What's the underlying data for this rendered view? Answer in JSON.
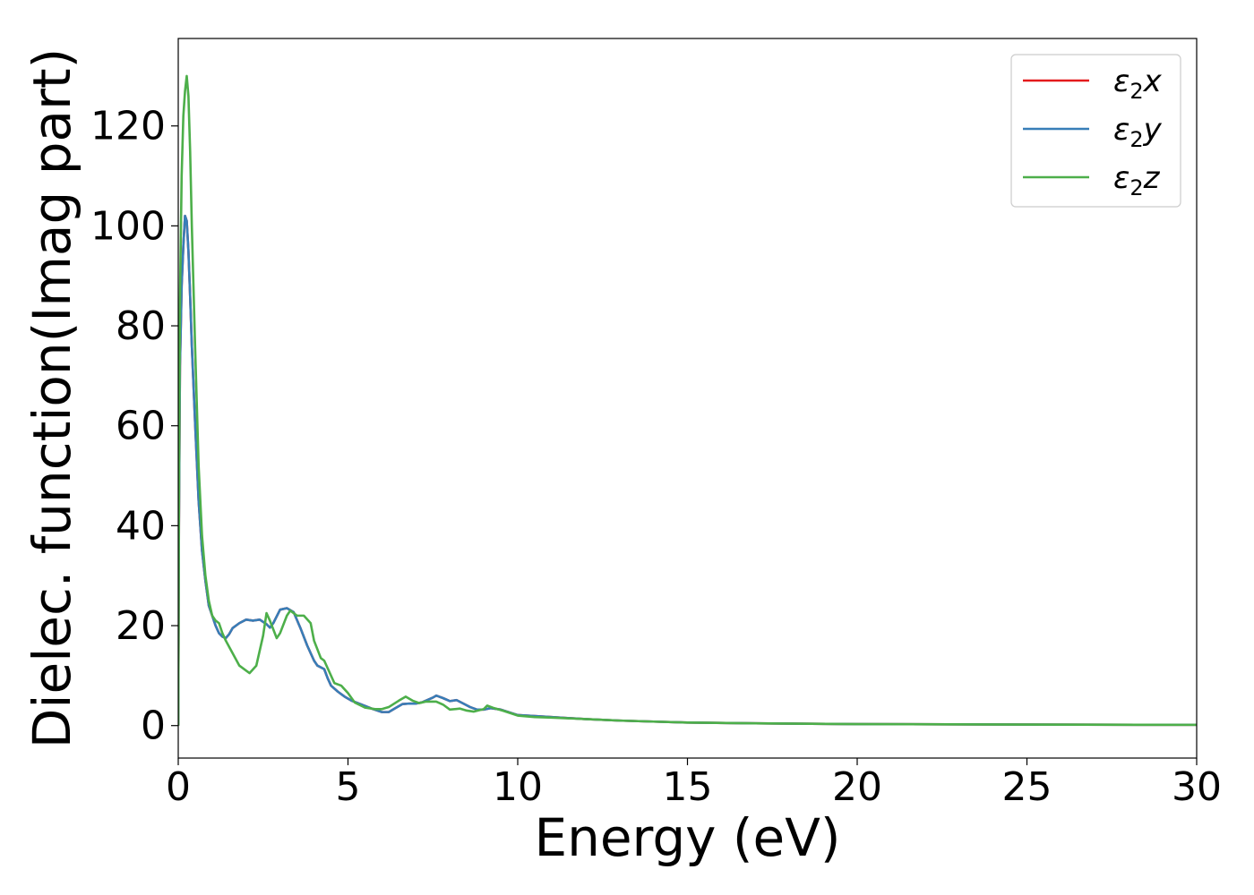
{
  "chart_data": {
    "type": "line",
    "xlabel": "Energy (eV)",
    "ylabel": "Dielec. function(Imag part)",
    "xlim": [
      0,
      30
    ],
    "ylim": [
      -6.5,
      137.5
    ],
    "xticks": [
      0,
      5,
      10,
      15,
      20,
      25,
      30
    ],
    "yticks": [
      0,
      20,
      40,
      60,
      80,
      100,
      120
    ],
    "grid": false,
    "legend_position": "top-right",
    "series": [
      {
        "name": "ε2x",
        "legend": {
          "base": "ε",
          "sub": "2",
          "suffix": "x"
        },
        "color": "#e41a1c",
        "points": [
          [
            0,
            0
          ],
          [
            0.02,
            40
          ],
          [
            0.05,
            72
          ],
          [
            0.1,
            88
          ],
          [
            0.15,
            96
          ],
          [
            0.2,
            102
          ],
          [
            0.25,
            101
          ],
          [
            0.3,
            95
          ],
          [
            0.35,
            86
          ],
          [
            0.4,
            76
          ],
          [
            0.5,
            60
          ],
          [
            0.6,
            45
          ],
          [
            0.7,
            35
          ],
          [
            0.8,
            29
          ],
          [
            0.9,
            24
          ],
          [
            1.0,
            22
          ],
          [
            1.1,
            20
          ],
          [
            1.2,
            18.5
          ],
          [
            1.3,
            17.8
          ],
          [
            1.4,
            17.5
          ],
          [
            1.5,
            18.3
          ],
          [
            1.6,
            19.5
          ],
          [
            1.8,
            20.5
          ],
          [
            2.0,
            21.2
          ],
          [
            2.2,
            21
          ],
          [
            2.4,
            21.2
          ],
          [
            2.6,
            20.3
          ],
          [
            2.7,
            19.6
          ],
          [
            2.8,
            20.5
          ],
          [
            3.0,
            23.2
          ],
          [
            3.2,
            23.5
          ],
          [
            3.4,
            22.7
          ],
          [
            3.6,
            19.5
          ],
          [
            3.8,
            16
          ],
          [
            4.0,
            13
          ],
          [
            4.1,
            12
          ],
          [
            4.3,
            11.3
          ],
          [
            4.4,
            9.5
          ],
          [
            4.5,
            8
          ],
          [
            4.7,
            6.8
          ],
          [
            4.9,
            5.8
          ],
          [
            5.1,
            5
          ],
          [
            5.4,
            4.2
          ],
          [
            5.7,
            3.4
          ],
          [
            6.0,
            2.7
          ],
          [
            6.2,
            2.7
          ],
          [
            6.4,
            3.5
          ],
          [
            6.6,
            4.3
          ],
          [
            6.8,
            4.4
          ],
          [
            7.0,
            4.4
          ],
          [
            7.2,
            4.7
          ],
          [
            7.5,
            5.6
          ],
          [
            7.6,
            6
          ],
          [
            7.8,
            5.5
          ],
          [
            8.0,
            4.9
          ],
          [
            8.2,
            5.1
          ],
          [
            8.4,
            4.4
          ],
          [
            8.6,
            3.7
          ],
          [
            8.8,
            3.2
          ],
          [
            9.0,
            3.2
          ],
          [
            9.2,
            3.5
          ],
          [
            9.5,
            3.2
          ],
          [
            10.0,
            2.1
          ],
          [
            10.5,
            1.9
          ],
          [
            11,
            1.7
          ],
          [
            12,
            1.3
          ],
          [
            13,
            1.0
          ],
          [
            14,
            0.8
          ],
          [
            15,
            0.6
          ],
          [
            17,
            0.45
          ],
          [
            20,
            0.3
          ],
          [
            25,
            0.2
          ],
          [
            30,
            0.15
          ]
        ]
      },
      {
        "name": "ε2y",
        "legend": {
          "base": "ε",
          "sub": "2",
          "suffix": "y"
        },
        "color": "#377eb8",
        "points": [
          [
            0,
            0
          ],
          [
            0.02,
            40
          ],
          [
            0.05,
            72
          ],
          [
            0.1,
            88
          ],
          [
            0.15,
            96
          ],
          [
            0.2,
            102
          ],
          [
            0.25,
            101
          ],
          [
            0.3,
            95
          ],
          [
            0.35,
            86
          ],
          [
            0.4,
            76
          ],
          [
            0.5,
            60
          ],
          [
            0.6,
            45
          ],
          [
            0.7,
            35
          ],
          [
            0.8,
            29
          ],
          [
            0.9,
            24
          ],
          [
            1.0,
            22
          ],
          [
            1.1,
            20
          ],
          [
            1.2,
            18.5
          ],
          [
            1.3,
            17.8
          ],
          [
            1.4,
            17.5
          ],
          [
            1.5,
            18.3
          ],
          [
            1.6,
            19.5
          ],
          [
            1.8,
            20.5
          ],
          [
            2.0,
            21.2
          ],
          [
            2.2,
            21
          ],
          [
            2.4,
            21.2
          ],
          [
            2.6,
            20.3
          ],
          [
            2.7,
            19.6
          ],
          [
            2.8,
            20.5
          ],
          [
            3.0,
            23.2
          ],
          [
            3.2,
            23.5
          ],
          [
            3.4,
            22.7
          ],
          [
            3.6,
            19.5
          ],
          [
            3.8,
            16
          ],
          [
            4.0,
            13
          ],
          [
            4.1,
            12
          ],
          [
            4.3,
            11.3
          ],
          [
            4.4,
            9.5
          ],
          [
            4.5,
            8
          ],
          [
            4.7,
            6.8
          ],
          [
            4.9,
            5.8
          ],
          [
            5.1,
            5
          ],
          [
            5.4,
            4.2
          ],
          [
            5.7,
            3.4
          ],
          [
            6.0,
            2.7
          ],
          [
            6.2,
            2.7
          ],
          [
            6.4,
            3.5
          ],
          [
            6.6,
            4.3
          ],
          [
            6.8,
            4.4
          ],
          [
            7.0,
            4.4
          ],
          [
            7.2,
            4.7
          ],
          [
            7.5,
            5.6
          ],
          [
            7.6,
            6
          ],
          [
            7.8,
            5.5
          ],
          [
            8.0,
            4.9
          ],
          [
            8.2,
            5.1
          ],
          [
            8.4,
            4.4
          ],
          [
            8.6,
            3.7
          ],
          [
            8.8,
            3.2
          ],
          [
            9.0,
            3.2
          ],
          [
            9.2,
            3.5
          ],
          [
            9.5,
            3.2
          ],
          [
            10.0,
            2.1
          ],
          [
            10.5,
            1.9
          ],
          [
            11,
            1.7
          ],
          [
            12,
            1.3
          ],
          [
            13,
            1.0
          ],
          [
            14,
            0.8
          ],
          [
            15,
            0.6
          ],
          [
            17,
            0.45
          ],
          [
            20,
            0.3
          ],
          [
            25,
            0.2
          ],
          [
            30,
            0.15
          ]
        ]
      },
      {
        "name": "ε2z",
        "legend": {
          "base": "ε",
          "sub": "2",
          "suffix": "z"
        },
        "color": "#4daf4a",
        "points": [
          [
            0,
            0
          ],
          [
            0.02,
            45
          ],
          [
            0.05,
            85
          ],
          [
            0.1,
            110
          ],
          [
            0.15,
            122
          ],
          [
            0.2,
            127
          ],
          [
            0.25,
            130
          ],
          [
            0.3,
            126
          ],
          [
            0.35,
            115
          ],
          [
            0.4,
            100
          ],
          [
            0.5,
            75
          ],
          [
            0.6,
            52
          ],
          [
            0.7,
            38
          ],
          [
            0.8,
            30
          ],
          [
            0.9,
            25
          ],
          [
            1.0,
            22
          ],
          [
            1.1,
            21
          ],
          [
            1.2,
            20.5
          ],
          [
            1.3,
            18.5
          ],
          [
            1.4,
            17
          ],
          [
            1.6,
            14.5
          ],
          [
            1.8,
            12
          ],
          [
            2.0,
            11
          ],
          [
            2.1,
            10.5
          ],
          [
            2.3,
            12
          ],
          [
            2.5,
            18
          ],
          [
            2.6,
            22.5
          ],
          [
            2.7,
            21
          ],
          [
            2.9,
            17.5
          ],
          [
            3.0,
            18.5
          ],
          [
            3.2,
            22
          ],
          [
            3.3,
            23
          ],
          [
            3.5,
            22
          ],
          [
            3.7,
            22
          ],
          [
            3.9,
            20.5
          ],
          [
            4.0,
            17
          ],
          [
            4.2,
            13.5
          ],
          [
            4.3,
            13
          ],
          [
            4.5,
            10
          ],
          [
            4.6,
            8.5
          ],
          [
            4.8,
            8
          ],
          [
            5.0,
            6.5
          ],
          [
            5.2,
            4.6
          ],
          [
            5.5,
            3.6
          ],
          [
            5.8,
            3.3
          ],
          [
            6.0,
            3.3
          ],
          [
            6.2,
            3.7
          ],
          [
            6.5,
            5
          ],
          [
            6.7,
            5.8
          ],
          [
            6.9,
            5
          ],
          [
            7.1,
            4.5
          ],
          [
            7.3,
            4.8
          ],
          [
            7.6,
            4.8
          ],
          [
            7.8,
            4.2
          ],
          [
            8.0,
            3.2
          ],
          [
            8.3,
            3.4
          ],
          [
            8.5,
            3
          ],
          [
            8.7,
            2.8
          ],
          [
            9.0,
            3.3
          ],
          [
            9.1,
            4
          ],
          [
            9.3,
            3.5
          ],
          [
            9.6,
            2.9
          ],
          [
            10.0,
            2.0
          ],
          [
            10.5,
            1.7
          ],
          [
            11,
            1.6
          ],
          [
            12,
            1.3
          ],
          [
            13,
            1.0
          ],
          [
            14,
            0.8
          ],
          [
            15,
            0.6
          ],
          [
            17,
            0.45
          ],
          [
            20,
            0.3
          ],
          [
            25,
            0.2
          ],
          [
            30,
            0.15
          ]
        ]
      }
    ]
  }
}
